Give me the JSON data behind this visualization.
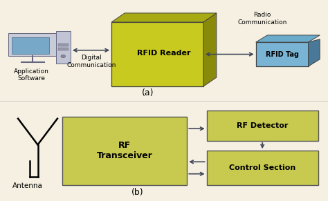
{
  "bg_color": "#f5f0e2",
  "olive_front": "#c8ca20",
  "olive_side": "#8a8a0a",
  "olive_top": "#a8aa14",
  "blue_front": "#7ab4d4",
  "blue_side": "#4a7898",
  "blue_top": "#6aaaca",
  "box_yellow": "#c8ca50",
  "arrow_color": "#404858",
  "text_color": "#000000",
  "label_a": "(a)",
  "label_b": "(b)",
  "rfid_reader_label": "RFID Reader",
  "rfid_tag_label": "RFID Tag",
  "app_software_label": "Application\nSoftware",
  "digital_comm_label": "Digital\nCommunication",
  "radio_comm_label": "Radio\nCommunication",
  "antenna_label": "Antenna",
  "rf_transceiver_label": "RF\nTransceiver",
  "rf_detector_label": "RF Detector",
  "control_section_label": "Control Section"
}
